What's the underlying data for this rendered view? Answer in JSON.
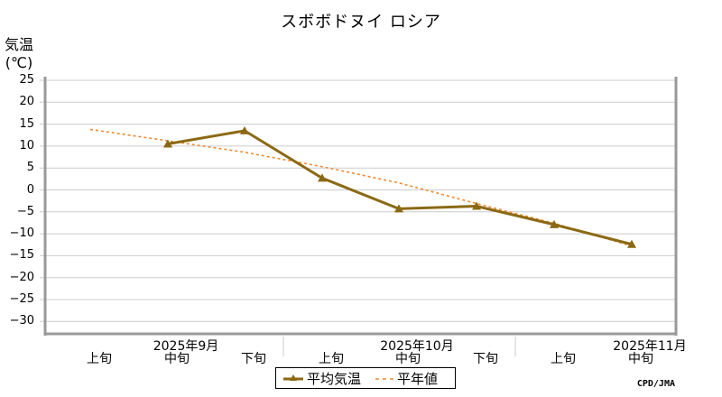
{
  "title": "スボボドヌイ ロシア",
  "y_axis_label_line1": "気温",
  "y_axis_label_line2": "(℃)",
  "y_ticks": [
    "25",
    "20",
    "15",
    "10",
    "5",
    "0",
    "-5",
    "-10",
    "-15",
    "-20",
    "-25",
    "-30"
  ],
  "x_ticks": [
    "上旬",
    "中旬",
    "下旬",
    "上旬",
    "中旬",
    "下旬",
    "上旬",
    "中旬"
  ],
  "x_months": [
    "2025年9月",
    "2025年10月",
    "2025年11月"
  ],
  "legend": {
    "series1": "平均気温",
    "series2": "平年値"
  },
  "credit": "CPD/JMA",
  "colors": {
    "observed": "#8B6914",
    "normal": "#F08A30",
    "grid": "#cccccc",
    "axis": "#999999"
  },
  "chart_data": {
    "type": "line",
    "title": "スボボドヌイ ロシア",
    "xlabel": "",
    "ylabel": "気温(℃)",
    "ylim": [
      -35,
      25
    ],
    "grid": true,
    "legend_position": "bottom",
    "categories": [
      "2025年9月上旬",
      "2025年9月中旬",
      "2025年9月下旬",
      "2025年10月上旬",
      "2025年10月中旬",
      "2025年10月下旬",
      "2025年11月上旬",
      "2025年11月中旬"
    ],
    "series": [
      {
        "name": "平均気温",
        "style": "solid-triangle",
        "values": [
          null,
          10.5,
          13.5,
          2.7,
          -4.3,
          -3.7,
          -7.9,
          -12.4
        ]
      },
      {
        "name": "平年値",
        "style": "dashed",
        "values": [
          13.8,
          11.2,
          8.6,
          5.3,
          1.6,
          -3.1,
          -7.6,
          -12.8
        ]
      }
    ]
  }
}
